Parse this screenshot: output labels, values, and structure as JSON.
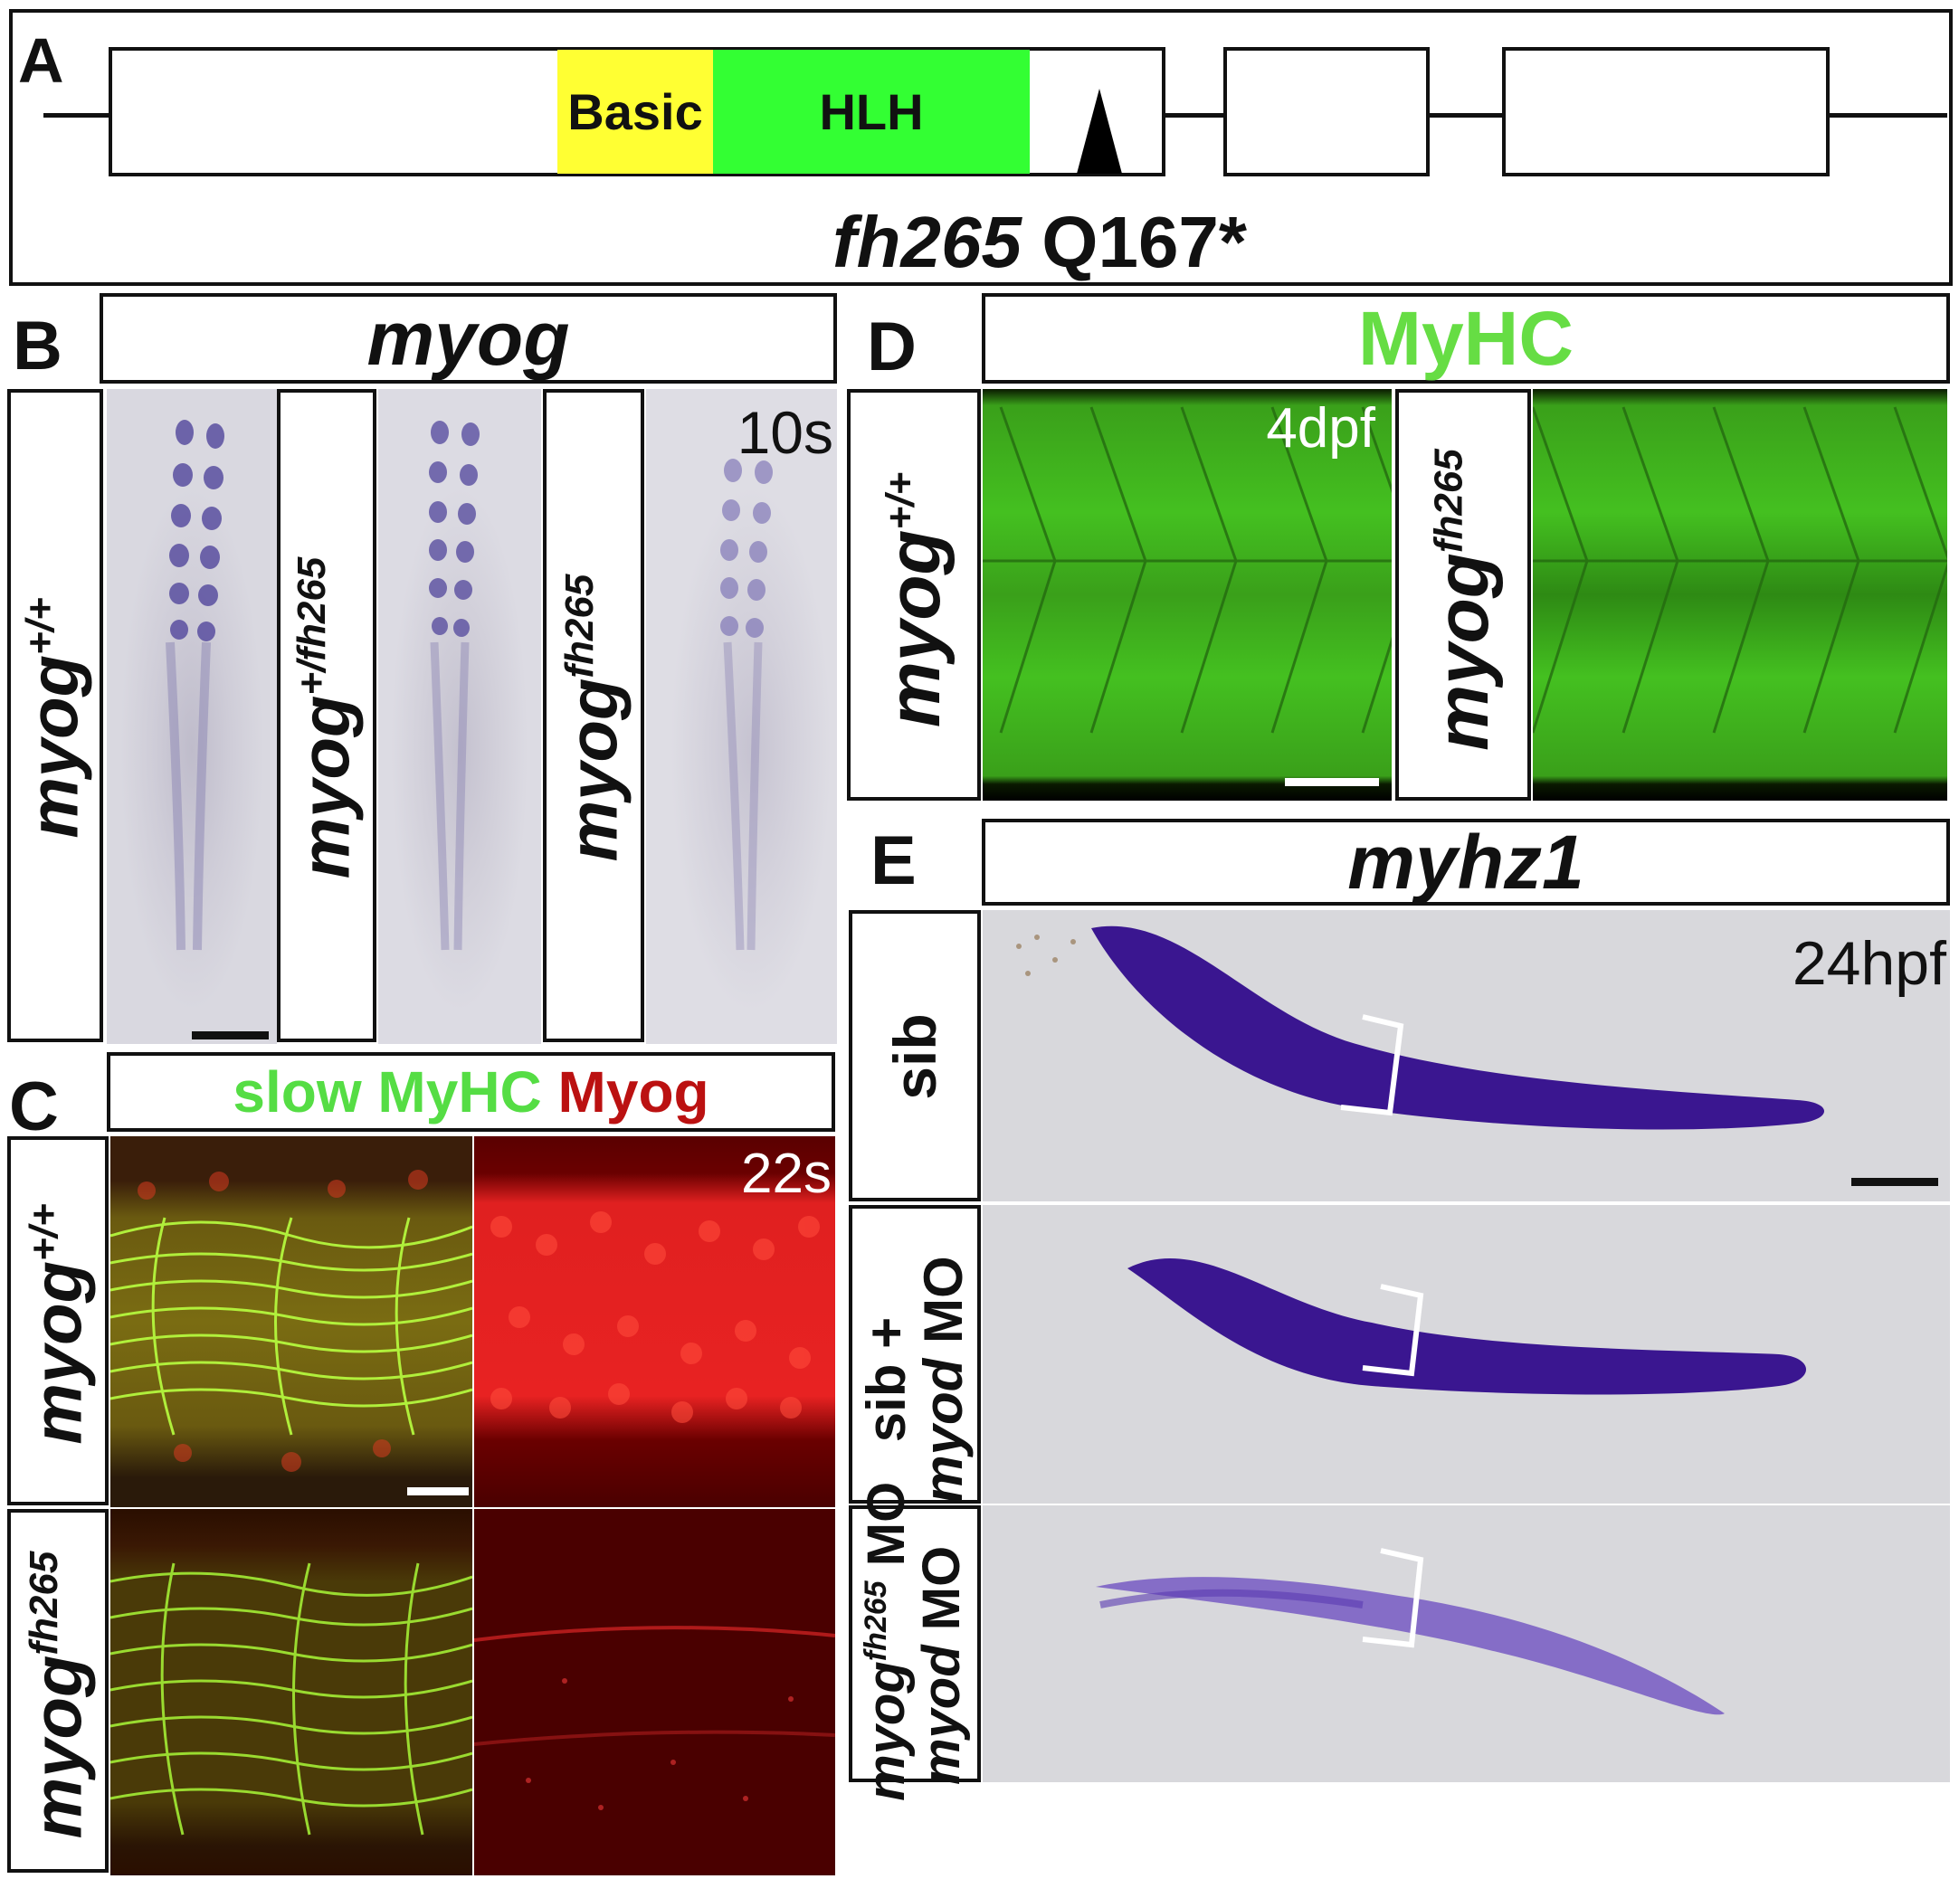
{
  "panel_a": {
    "letter": "A",
    "domains": {
      "basic": "Basic",
      "hlh": "HLH"
    },
    "mutation_allele": "fh265",
    "mutation_change": "Q167*",
    "colors": {
      "basic": "#ffff33",
      "hlh": "#33ff33",
      "arrow": "#000000"
    }
  },
  "panel_b": {
    "letter": "B",
    "title": "myog",
    "stage": "10s",
    "rows": [
      {
        "base": "myog",
        "sup": "+/+"
      },
      {
        "base": "myog",
        "sup": "+/fh265"
      },
      {
        "base": "myog",
        "sup": "fh265"
      }
    ]
  },
  "panel_c": {
    "letter": "C",
    "title_parts": [
      {
        "text": "slow MyHC",
        "color": "#55dd44"
      },
      {
        "text": "Myog",
        "color": "#bb1111"
      }
    ],
    "stage": "22s",
    "rows": [
      {
        "base": "myog",
        "sup": "+/+"
      },
      {
        "base": "myog",
        "sup": "fh265"
      }
    ]
  },
  "panel_d": {
    "letter": "D",
    "title": "MyHC",
    "title_color": "#66dd44",
    "stage": "4dpf",
    "rows": [
      {
        "base": "myog",
        "sup": "+/+"
      },
      {
        "base": "myog",
        "sup": "fh265"
      }
    ]
  },
  "panel_e": {
    "letter": "E",
    "title": "myhz1",
    "stage": "24hpf",
    "rows": [
      {
        "line1": "sib"
      },
      {
        "line1": "sib +",
        "line2_italic": "myod",
        "line2_rest": " MO"
      },
      {
        "line1_base": "myog",
        "line1_sup": "fh265",
        "line2_italic": "myod",
        "line2_rest": " MO"
      }
    ]
  }
}
